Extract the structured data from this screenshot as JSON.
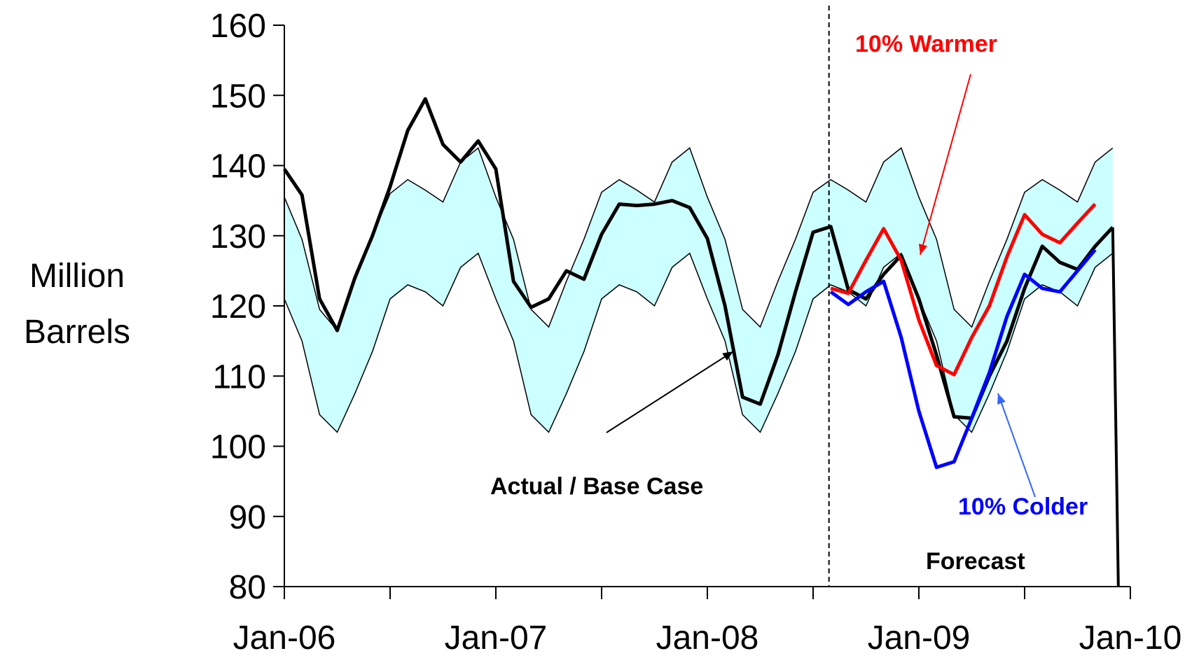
{
  "chart_data": {
    "type": "line",
    "title": "",
    "ylabel_lines": [
      "Million",
      "Barrels"
    ],
    "xlabel": "",
    "ylim": [
      80,
      160
    ],
    "xlim": [
      "2006-01",
      "2010-01"
    ],
    "y_ticks": [
      80,
      90,
      100,
      110,
      120,
      130,
      140,
      150,
      160
    ],
    "x_ticks": [
      "Jan-06",
      "Jan-07",
      "Jan-08",
      "Jan-09",
      "Jan-10"
    ],
    "grid": false,
    "forecast_start": "2008-08",
    "months": [
      "2006-01",
      "2006-02",
      "2006-03",
      "2006-04",
      "2006-05",
      "2006-06",
      "2006-07",
      "2006-08",
      "2006-09",
      "2006-10",
      "2006-11",
      "2006-12",
      "2007-01",
      "2007-02",
      "2007-03",
      "2007-04",
      "2007-05",
      "2007-06",
      "2007-07",
      "2007-08",
      "2007-09",
      "2007-10",
      "2007-11",
      "2007-12",
      "2008-01",
      "2008-02",
      "2008-03",
      "2008-04",
      "2008-05",
      "2008-06",
      "2008-07",
      "2008-08",
      "2008-09",
      "2008-10",
      "2008-11",
      "2008-12",
      "2009-01",
      "2009-02",
      "2009-03",
      "2009-04",
      "2009-05",
      "2009-06",
      "2009-07",
      "2009-08",
      "2009-09",
      "2009-10",
      "2009-11",
      "2009-12"
    ],
    "band": {
      "upper": [
        135.5,
        129.5,
        119.5,
        116.5,
        123.5,
        130.0,
        136.0,
        138.0,
        136.5,
        134.8,
        140.5,
        142.5,
        135.5,
        129.5,
        119.5,
        117.0,
        123.5,
        129.5,
        136.2,
        138.0,
        136.5,
        134.8,
        140.5,
        142.5,
        135.5,
        129.5,
        119.5,
        117.0,
        123.5,
        129.5,
        136.2,
        138.0,
        136.5,
        134.8,
        140.5,
        142.5,
        135.5,
        129.5,
        119.5,
        117.0,
        123.5,
        129.5,
        136.2,
        138.0,
        136.5,
        134.8,
        140.5,
        142.5
      ],
      "lower": [
        121.0,
        115.0,
        104.5,
        102.0,
        107.5,
        113.5,
        121.0,
        123.0,
        122.0,
        120.0,
        125.5,
        127.5,
        121.0,
        115.0,
        104.5,
        102.0,
        107.5,
        113.5,
        121.0,
        123.0,
        122.0,
        120.0,
        125.5,
        127.5,
        121.0,
        115.0,
        104.5,
        102.0,
        107.5,
        113.5,
        121.0,
        123.0,
        122.0,
        120.0,
        125.5,
        127.5,
        121.0,
        115.0,
        104.5,
        102.0,
        107.5,
        113.5,
        121.0,
        123.0,
        122.0,
        120.0,
        125.5,
        127.5
      ]
    },
    "series": [
      {
        "name": "Actual / Base Case",
        "color": "#000000",
        "start": "2006-01",
        "values": [
          139.5,
          135.8,
          121.0,
          116.5,
          124.0,
          130.0,
          137.0,
          145.0,
          149.5,
          143.0,
          140.5,
          143.5,
          139.5,
          123.5,
          119.8,
          121.0,
          125.0,
          123.8,
          130.2,
          134.5,
          134.3,
          134.5,
          135.0,
          134.0,
          129.6,
          120.0,
          107.0,
          106.0,
          113.0,
          122.0,
          130.5,
          131.3,
          122.3,
          121.0,
          124.5,
          127.2,
          121.0,
          113.0,
          104.2,
          104.0,
          110.0,
          115.0,
          122.5,
          128.5,
          126.2,
          125.2,
          128.5,
          131.2
        ]
      },
      {
        "name": "10% Warmer",
        "color": "#ff0000",
        "start": "2008-08",
        "values": [
          122.5,
          121.8,
          126.5,
          131.0,
          126.5,
          118.0,
          111.5,
          110.2,
          115.5,
          120.0,
          127.0,
          133.0,
          130.2,
          129.0,
          131.8,
          134.5
        ]
      },
      {
        "name": "10% Colder",
        "color": "#0000ff",
        "start": "2008-08",
        "values": [
          122.0,
          120.2,
          122.0,
          123.5,
          115.5,
          105.0,
          97.0,
          97.8,
          104.0,
          110.5,
          118.5,
          124.5,
          122.5,
          122.0,
          125.0,
          128.0
        ]
      }
    ],
    "annotations": [
      {
        "text": "10% Warmer",
        "color": "#ff0000"
      },
      {
        "text": "10% Colder",
        "color": "#0000ff"
      },
      {
        "text": "Actual / Base Case",
        "color": "#000000"
      },
      {
        "text": "Forecast",
        "color": "#000000"
      }
    ],
    "band_color": "#ccffff"
  }
}
